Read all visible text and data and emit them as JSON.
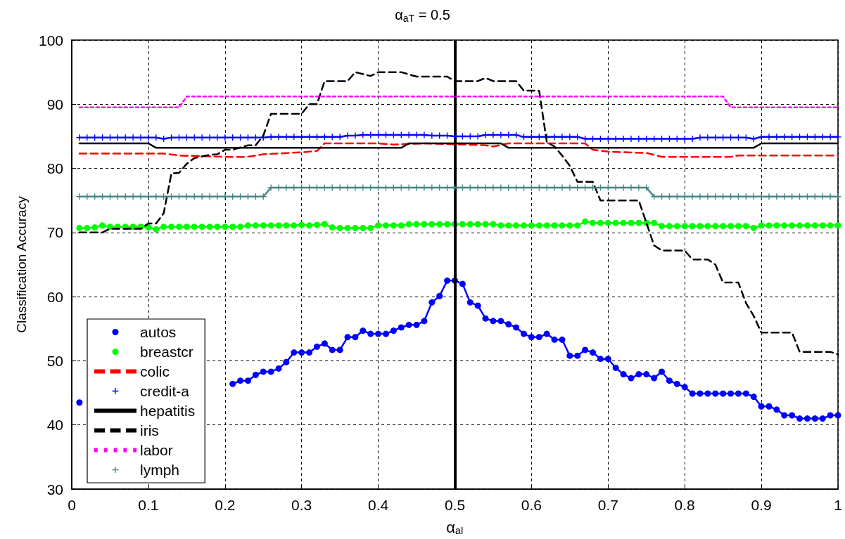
{
  "chart_data": {
    "type": "line",
    "title": "α$_{aT}$ = 0.5",
    "xlabel": "α$_{aI}$",
    "ylabel": "Classification Accuracy",
    "xlim": [
      0,
      1
    ],
    "xticks": [
      0,
      0.1,
      0.2,
      0.3,
      0.4,
      0.5,
      0.6,
      0.7,
      0.8,
      0.9,
      1
    ],
    "ylim": [
      30,
      100
    ],
    "yticks": [
      30,
      40,
      50,
      60,
      70,
      80,
      90,
      100
    ],
    "grid": true,
    "legend": "bottom left",
    "ref_lines": [
      {
        "axis": "x",
        "value": 0.5,
        "color": "#000000",
        "line_style": "solid"
      }
    ],
    "x": [
      0.01,
      0.02,
      0.03,
      0.04,
      0.05,
      0.06,
      0.07,
      0.08,
      0.09,
      0.1,
      0.11,
      0.12,
      0.13,
      0.14,
      0.15,
      0.16,
      0.17,
      0.18,
      0.19,
      0.2,
      0.21,
      0.22,
      0.23,
      0.24,
      0.25,
      0.26,
      0.27,
      0.28,
      0.29,
      0.3,
      0.31,
      0.32,
      0.33,
      0.34,
      0.35,
      0.36,
      0.37,
      0.38,
      0.39,
      0.4,
      0.41,
      0.42,
      0.43,
      0.44,
      0.45,
      0.46,
      0.47,
      0.48,
      0.49,
      0.5,
      0.51,
      0.52,
      0.53,
      0.54,
      0.55,
      0.56,
      0.57,
      0.58,
      0.59,
      0.6,
      0.61,
      0.62,
      0.63,
      0.64,
      0.65,
      0.66,
      0.67,
      0.68,
      0.69,
      0.7,
      0.71,
      0.72,
      0.73,
      0.74,
      0.75,
      0.76,
      0.77,
      0.78,
      0.79,
      0.8,
      0.81,
      0.82,
      0.83,
      0.84,
      0.85,
      0.86,
      0.87,
      0.88,
      0.89,
      0.9,
      0.91,
      0.92,
      0.93,
      0.94,
      0.95,
      0.96,
      0.97,
      0.98,
      0.99,
      1
    ],
    "series": [
      {
        "name": "autos",
        "color": "#0000ff",
        "marker": "circle",
        "line_style": "solid",
        "values": [
          43.5,
          null,
          null,
          null,
          null,
          null,
          null,
          null,
          null,
          null,
          null,
          null,
          null,
          null,
          null,
          null,
          null,
          null,
          null,
          null,
          46.4,
          46.9,
          46.9,
          47.8,
          48.3,
          48.3,
          48.8,
          49.8,
          51.3,
          51.3,
          51.3,
          52.2,
          52.7,
          51.7,
          51.7,
          53.7,
          53.7,
          54.7,
          54.2,
          54.2,
          54.2,
          54.7,
          55.2,
          55.6,
          55.6,
          56.2,
          59.1,
          60.1,
          62.5,
          62.5,
          62.0,
          59.1,
          58.6,
          56.6,
          56.2,
          56.2,
          55.7,
          55.2,
          54.2,
          53.7,
          53.7,
          54.2,
          53.3,
          53.3,
          50.8,
          50.8,
          51.7,
          51.3,
          50.3,
          50.3,
          48.9,
          47.9,
          47.3,
          47.9,
          47.9,
          47.3,
          48.3,
          46.9,
          46.4,
          45.9,
          44.9,
          44.9,
          44.9,
          44.9,
          44.9,
          44.9,
          44.9,
          44.9,
          44.4,
          42.9,
          42.9,
          42.4,
          41.5,
          41.5,
          41.0,
          41.0,
          41.0,
          41.0,
          41.5,
          41.5
        ]
      },
      {
        "name": "breastcr",
        "color": "#00ff00",
        "marker": "circle",
        "line_style": "solid",
        "values": [
          70.7,
          70.7,
          70.8,
          71.1,
          70.9,
          70.9,
          70.9,
          70.9,
          70.9,
          70.8,
          70.5,
          70.9,
          70.9,
          70.9,
          70.9,
          70.9,
          70.9,
          70.9,
          70.9,
          70.9,
          70.9,
          70.9,
          71.1,
          71.1,
          71.1,
          71.1,
          71.1,
          71.1,
          71.1,
          71.2,
          71.1,
          71.2,
          71.3,
          70.8,
          70.7,
          70.7,
          70.7,
          70.7,
          70.7,
          71.1,
          71.1,
          71.1,
          71.1,
          71.3,
          71.3,
          71.3,
          71.3,
          71.3,
          71.3,
          71.3,
          71.3,
          71.3,
          71.3,
          71.3,
          71.3,
          71.1,
          71.1,
          71.1,
          71.1,
          71.1,
          71.1,
          71.1,
          71.1,
          71.1,
          71.1,
          71.1,
          71.7,
          71.5,
          71.5,
          71.5,
          71.5,
          71.5,
          71.5,
          71.5,
          71.5,
          71.5,
          71.0,
          71.0,
          71.0,
          71.0,
          71.0,
          71.0,
          71.0,
          71.0,
          71.0,
          71.0,
          71.0,
          71.0,
          70.7,
          71.1,
          71.1,
          71.1,
          71.1,
          71.1,
          71.1,
          71.1,
          71.1,
          71.1,
          71.1,
          71.1
        ]
      },
      {
        "name": "colic",
        "color": "#ff0000",
        "marker": "none",
        "line_style": "dashed",
        "x": [
          0.01,
          0.12,
          0.14,
          0.2,
          0.23,
          0.25,
          0.3,
          0.32,
          0.33,
          0.4,
          0.42,
          0.46,
          0.54,
          0.55,
          0.57,
          0.67,
          0.68,
          0.7,
          0.75,
          0.77,
          0.86,
          0.87,
          1
        ],
        "values": [
          82.3,
          82.3,
          82.0,
          81.8,
          81.8,
          82.2,
          82.5,
          82.7,
          83.9,
          83.9,
          83.7,
          83.9,
          83.6,
          83.4,
          83.9,
          83.9,
          82.9,
          82.6,
          82.4,
          81.8,
          81.8,
          82.0,
          82.0
        ]
      },
      {
        "name": "credit-a",
        "color": "#0000ff",
        "marker": "cross",
        "line_style": "solid",
        "values": [
          84.8,
          84.8,
          84.8,
          84.8,
          84.8,
          84.8,
          84.8,
          84.8,
          84.8,
          84.8,
          84.8,
          84.6,
          84.8,
          84.8,
          84.8,
          84.8,
          84.8,
          84.8,
          84.8,
          84.8,
          84.8,
          84.8,
          84.8,
          84.8,
          84.8,
          84.9,
          84.9,
          84.9,
          84.9,
          84.9,
          84.9,
          84.9,
          84.9,
          84.9,
          84.9,
          85.1,
          85.1,
          85.2,
          85.2,
          85.2,
          85.2,
          85.2,
          85.2,
          85.2,
          85.2,
          85.2,
          85.1,
          85.1,
          85.1,
          85.0,
          85.0,
          85.0,
          85.0,
          85.2,
          85.2,
          85.2,
          85.2,
          85.2,
          84.9,
          84.9,
          84.9,
          84.9,
          84.9,
          84.9,
          84.9,
          84.9,
          84.6,
          84.6,
          84.6,
          84.6,
          84.6,
          84.6,
          84.6,
          84.6,
          84.6,
          84.6,
          84.6,
          84.6,
          84.6,
          84.6,
          84.6,
          84.8,
          84.8,
          84.8,
          84.8,
          84.8,
          84.8,
          84.8,
          84.6,
          84.9,
          84.9,
          84.9,
          84.9,
          84.9,
          84.9,
          84.9,
          84.9,
          84.9,
          84.9,
          84.9
        ]
      },
      {
        "name": "hepatitis",
        "color": "#000000",
        "marker": "none",
        "line_style": "solid",
        "x": [
          0.01,
          0.1,
          0.11,
          0.43,
          0.44,
          0.56,
          0.57,
          0.89,
          0.9,
          1
        ],
        "values": [
          83.9,
          83.9,
          83.2,
          83.2,
          83.9,
          83.9,
          83.2,
          83.2,
          83.9,
          83.9
        ]
      },
      {
        "name": "iris",
        "color": "#000000",
        "marker": "none",
        "line_style": "dashed",
        "x": [
          0.01,
          0.04,
          0.05,
          0.09,
          0.1,
          0.11,
          0.12,
          0.13,
          0.14,
          0.15,
          0.16,
          0.18,
          0.19,
          0.2,
          0.21,
          0.23,
          0.24,
          0.25,
          0.26,
          0.3,
          0.31,
          0.32,
          0.33,
          0.36,
          0.37,
          0.39,
          0.4,
          0.43,
          0.45,
          0.49,
          0.5,
          0.53,
          0.54,
          0.55,
          0.58,
          0.59,
          0.61,
          0.62,
          0.63,
          0.64,
          0.65,
          0.66,
          0.68,
          0.69,
          0.74,
          0.75,
          0.76,
          0.77,
          0.8,
          0.81,
          0.83,
          0.84,
          0.85,
          0.87,
          0.88,
          0.89,
          0.9,
          0.94,
          0.95,
          0.99,
          1
        ],
        "values": [
          70.0,
          70.0,
          70.6,
          70.6,
          71.4,
          71.4,
          73.0,
          79.2,
          79.3,
          80.7,
          81.6,
          82.1,
          82.2,
          82.9,
          82.9,
          83.6,
          83.6,
          85.1,
          88.5,
          88.5,
          90.0,
          90.0,
          93.6,
          93.6,
          95.0,
          94.4,
          95.0,
          95.0,
          94.3,
          94.3,
          93.6,
          93.6,
          94.1,
          93.6,
          93.6,
          92.1,
          92.1,
          84.1,
          83.4,
          82.0,
          80.4,
          77.9,
          77.9,
          75.0,
          75.0,
          71.5,
          68.0,
          67.2,
          67.2,
          65.8,
          65.8,
          65.0,
          62.2,
          62.2,
          59.0,
          57.0,
          54.4,
          54.4,
          51.4,
          51.4,
          51.0
        ]
      },
      {
        "name": "labor",
        "color": "#ff00ff",
        "marker": "none",
        "line_style": "dotted",
        "x": [
          0.01,
          0.14,
          0.15,
          0.85,
          0.86,
          1
        ],
        "values": [
          89.5,
          89.5,
          91.2,
          91.2,
          89.5,
          89.5
        ]
      },
      {
        "name": "lymph",
        "color": "#468585",
        "marker": "cross",
        "line_style": "solid",
        "values": [
          75.6,
          75.6,
          75.6,
          75.6,
          75.6,
          75.6,
          75.6,
          75.6,
          75.6,
          75.6,
          75.6,
          75.6,
          75.6,
          75.6,
          75.6,
          75.6,
          75.6,
          75.6,
          75.6,
          75.6,
          75.6,
          75.6,
          75.6,
          75.6,
          75.6,
          77.0,
          77.0,
          77.0,
          77.0,
          77.0,
          77.0,
          77.0,
          77.0,
          77.0,
          77.0,
          77.0,
          77.0,
          77.0,
          77.0,
          77.0,
          77.0,
          77.0,
          77.0,
          77.0,
          77.0,
          77.0,
          77.0,
          77.0,
          77.0,
          77.0,
          77.0,
          77.0,
          77.0,
          77.0,
          77.0,
          77.0,
          77.0,
          77.0,
          77.0,
          77.0,
          77.0,
          77.0,
          77.0,
          77.0,
          77.0,
          77.0,
          77.0,
          77.0,
          77.0,
          77.0,
          77.0,
          77.0,
          77.0,
          77.0,
          77.0,
          75.6,
          75.6,
          75.6,
          75.6,
          75.6,
          75.6,
          75.6,
          75.6,
          75.6,
          75.6,
          75.6,
          75.6,
          75.6,
          75.6,
          75.6,
          75.6,
          75.6,
          75.6,
          75.6,
          75.6,
          75.6,
          75.6,
          75.6,
          75.6,
          75.6
        ]
      }
    ]
  }
}
